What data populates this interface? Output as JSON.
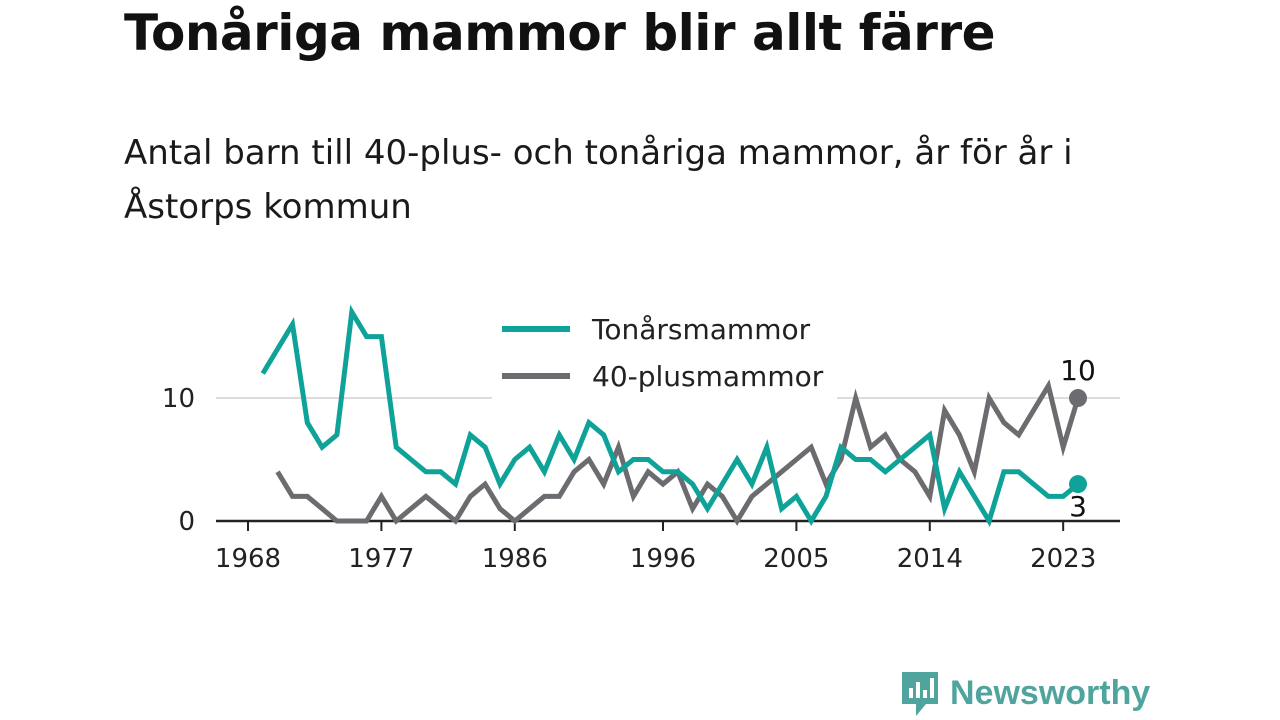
{
  "title": "Tonåriga mammor blir allt färre",
  "subtitle": "Antal barn till 40-plus- och tonåriga mammor, år för år i Åstorps kommun",
  "brand": "Newsworthy",
  "colors": {
    "teal": "#0fa298",
    "gray": "#6b6b70",
    "brand": "#4fa59d"
  },
  "chart_data": {
    "type": "line",
    "title": "Tonåriga mammor blir allt färre",
    "subtitle": "Antal barn till 40-plus- och tonåriga mammor, år för år i Åstorps kommun",
    "xlabel": "",
    "ylabel": "",
    "xlim": [
      1968,
      2024
    ],
    "ylim": [
      0,
      17
    ],
    "x_ticks": [
      1968,
      1977,
      1986,
      1996,
      2005,
      2014,
      2023
    ],
    "y_ticks": [
      0,
      10
    ],
    "grid": "horizontal",
    "legend_position": "top-center",
    "x": [
      1969,
      1970,
      1971,
      1972,
      1973,
      1974,
      1975,
      1976,
      1977,
      1978,
      1979,
      1980,
      1981,
      1982,
      1983,
      1984,
      1985,
      1986,
      1987,
      1988,
      1989,
      1990,
      1991,
      1992,
      1993,
      1994,
      1995,
      1996,
      1997,
      1998,
      1999,
      2000,
      2001,
      2002,
      2003,
      2004,
      2005,
      2006,
      2007,
      2008,
      2009,
      2010,
      2011,
      2012,
      2013,
      2014,
      2015,
      2016,
      2017,
      2018,
      2019,
      2020,
      2021,
      2022,
      2023,
      2024
    ],
    "series": [
      {
        "name": "Tonårsmammor",
        "color": "#0fa298",
        "values": [
          12,
          14,
          16,
          8,
          6,
          7,
          17,
          15,
          15,
          6,
          5,
          4,
          4,
          3,
          7,
          6,
          3,
          5,
          6,
          4,
          7,
          5,
          8,
          7,
          4,
          5,
          5,
          4,
          4,
          3,
          1,
          3,
          5,
          3,
          6,
          1,
          2,
          0,
          2,
          6,
          5,
          5,
          4,
          5,
          6,
          7,
          1,
          4,
          2,
          0,
          4,
          4,
          3,
          2,
          2,
          3
        ],
        "end_label": "3"
      },
      {
        "name": "40-plusmammor",
        "color": "#6b6b70",
        "values": [
          null,
          4,
          2,
          2,
          1,
          0,
          0,
          0,
          2,
          0,
          1,
          2,
          1,
          0,
          2,
          3,
          1,
          0,
          1,
          2,
          2,
          4,
          5,
          3,
          6,
          2,
          4,
          3,
          4,
          1,
          3,
          2,
          0,
          2,
          3,
          4,
          5,
          6,
          3,
          5,
          10,
          6,
          7,
          5,
          4,
          2,
          9,
          7,
          4,
          10,
          8,
          7,
          9,
          11,
          6,
          10
        ],
        "end_label": "10"
      }
    ]
  }
}
